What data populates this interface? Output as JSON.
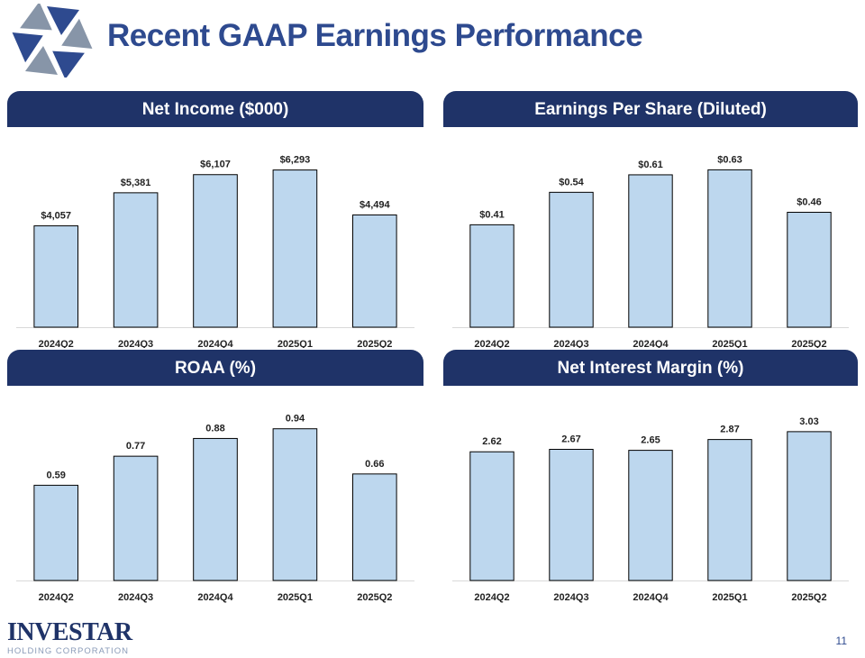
{
  "title": "Recent GAAP Earnings Performance",
  "colors": {
    "title": "#2e4a8f",
    "header_bg": "#1f3368",
    "header_text": "#ffffff",
    "bar_fill": "#bdd7ee",
    "bar_stroke": "#000000",
    "logo_blue": "#2e4a8f",
    "logo_gray": "#8795a8"
  },
  "footer": {
    "brand": "INVESTAR",
    "sub": "HOLDING CORPORATION",
    "page_number": "11"
  },
  "chart_data": [
    {
      "type": "bar",
      "title": "Net Income ($000)",
      "categories": [
        "2024Q2",
        "2024Q3",
        "2024Q4",
        "2025Q1",
        "2025Q2"
      ],
      "values": [
        4057,
        5381,
        6107,
        6293,
        4494
      ],
      "labels": [
        "$4,057",
        "$5,381",
        "$6,107",
        "$6,293",
        "$4,494"
      ],
      "ylim": [
        0,
        7000
      ],
      "grid": false
    },
    {
      "type": "bar",
      "title": "Earnings Per Share (Diluted)",
      "categories": [
        "2024Q2",
        "2024Q3",
        "2024Q4",
        "2025Q1",
        "2025Q2"
      ],
      "values": [
        0.41,
        0.54,
        0.61,
        0.63,
        0.46
      ],
      "labels": [
        "$0.41",
        "$0.54",
        "$0.61",
        "$0.63",
        "$0.46"
      ],
      "ylim": [
        0,
        0.7
      ],
      "grid": false
    },
    {
      "type": "bar",
      "title": "ROAA (%)",
      "categories": [
        "2024Q2",
        "2024Q3",
        "2024Q4",
        "2025Q1",
        "2025Q2"
      ],
      "values": [
        0.59,
        0.77,
        0.88,
        0.94,
        0.66
      ],
      "labels": [
        "0.59",
        "0.77",
        "0.88",
        "0.94",
        "0.66"
      ],
      "ylim": [
        0,
        1.05
      ],
      "grid": false
    },
    {
      "type": "bar",
      "title": "Net Interest Margin (%)",
      "categories": [
        "2024Q2",
        "2024Q3",
        "2024Q4",
        "2025Q1",
        "2025Q2"
      ],
      "values": [
        2.62,
        2.67,
        2.65,
        2.87,
        3.03
      ],
      "labels": [
        "2.62",
        "2.67",
        "2.65",
        "2.87",
        "3.03"
      ],
      "ylim": [
        0,
        3.45
      ],
      "grid": false
    }
  ]
}
